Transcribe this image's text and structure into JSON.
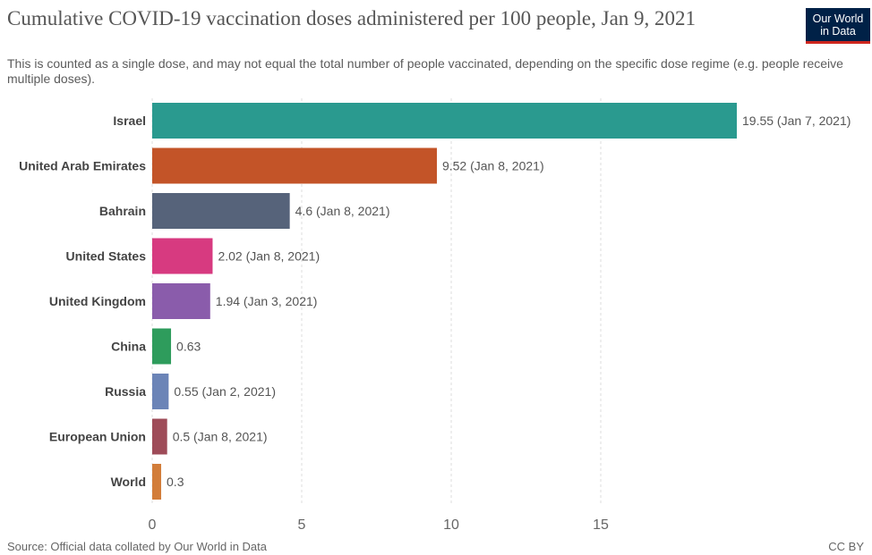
{
  "header": {
    "title": "Cumulative COVID-19 vaccination doses administered per 100 people, Jan 9, 2021",
    "subtitle": "This is counted as a single dose, and may not equal the total number of people vaccinated, depending on the specific dose regime (e.g. people receive multiple doses).",
    "logo_line1": "Our World",
    "logo_line2": "in Data"
  },
  "footer": {
    "source": "Source: Official data collated by Our World in Data",
    "license": "CC BY"
  },
  "chart_data": {
    "type": "bar",
    "orientation": "horizontal",
    "title": "Cumulative COVID-19 vaccination doses administered per 100 people, Jan 9, 2021",
    "subtitle": "This is counted as a single dose, and may not equal the total number of people vaccinated, depending on the specific dose regime (e.g. people receive multiple doses).",
    "xlabel": "",
    "ylabel": "",
    "xlim": [
      0,
      19.55
    ],
    "xticks": [
      0,
      5,
      10,
      15
    ],
    "grid": true,
    "categories": [
      "Israel",
      "United Arab Emirates",
      "Bahrain",
      "United States",
      "United Kingdom",
      "China",
      "Russia",
      "European Union",
      "World"
    ],
    "values": [
      19.55,
      9.52,
      4.6,
      2.02,
      1.94,
      0.63,
      0.55,
      0.5,
      0.3
    ],
    "value_labels": [
      "19.55 (Jan 7, 2021)",
      "9.52 (Jan 8, 2021)",
      "4.6 (Jan 8, 2021)",
      "2.02 (Jan 8, 2021)",
      "1.94 (Jan 3, 2021)",
      "0.63",
      "0.55 (Jan 2, 2021)",
      "0.5 (Jan 8, 2021)",
      "0.3"
    ],
    "colors": [
      "#2a9a8f",
      "#c35428",
      "#56637a",
      "#d73a80",
      "#8a5cab",
      "#2e9c5c",
      "#6b84b7",
      "#9e4b58",
      "#d27d3a"
    ]
  }
}
